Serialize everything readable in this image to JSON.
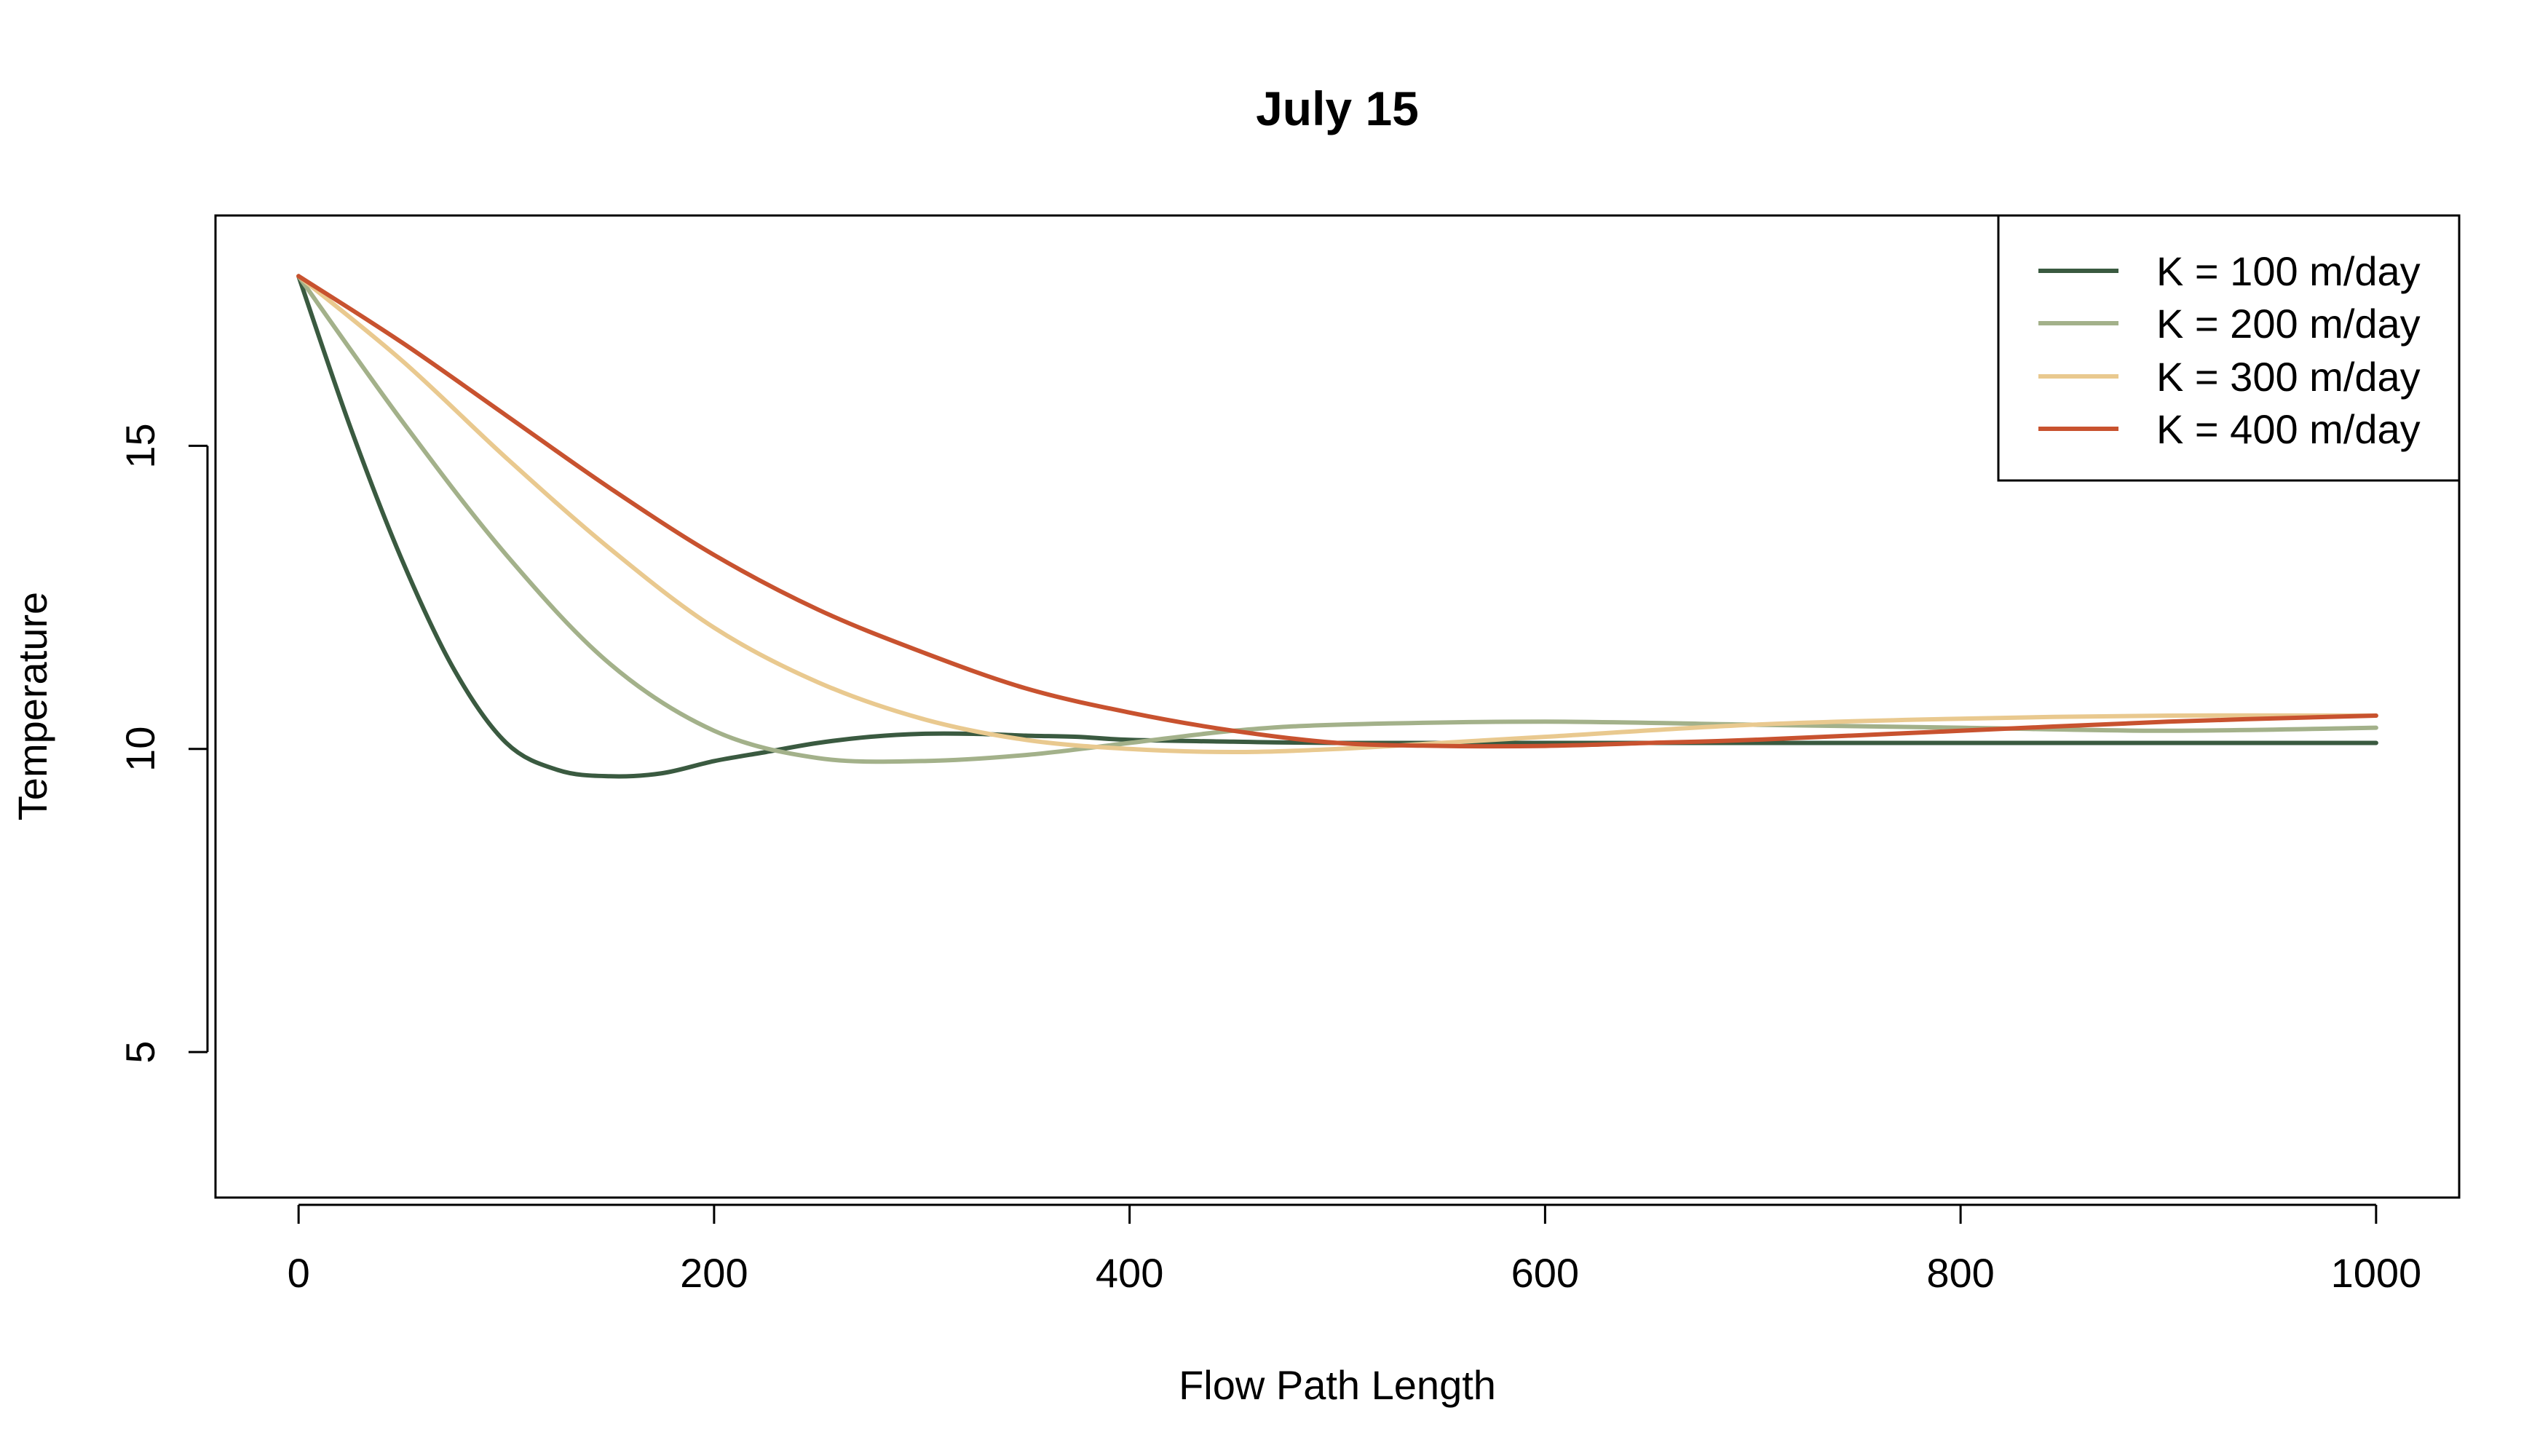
{
  "chart_data": {
    "type": "line",
    "title": "July 15",
    "xlabel": "Flow Path Length",
    "ylabel": "Temperature",
    "xlim": [
      -40,
      1040
    ],
    "ylim": [
      2.6,
      18.8
    ],
    "x_ticks": [
      0,
      200,
      400,
      600,
      800,
      1000
    ],
    "y_ticks": [
      5,
      10,
      15
    ],
    "legend_position": "top-right",
    "grid": false,
    "series": [
      {
        "name": "K = 100 m/day",
        "color": "#3a5a40",
        "x": [
          0,
          25,
          50,
          75,
          100,
          125,
          150,
          175,
          200,
          225,
          250,
          275,
          300,
          325,
          350,
          375,
          400,
          450,
          500,
          600,
          700,
          800,
          900,
          1000
        ],
        "y": [
          17.8,
          15.3,
          13.1,
          11.3,
          10.1,
          9.65,
          9.55,
          9.6,
          9.8,
          9.95,
          10.1,
          10.2,
          10.25,
          10.25,
          10.22,
          10.2,
          10.15,
          10.12,
          10.1,
          10.1,
          10.1,
          10.1,
          10.1,
          10.1
        ]
      },
      {
        "name": "K = 200 m/day",
        "color": "#a3b18a",
        "x": [
          0,
          50,
          100,
          150,
          200,
          250,
          300,
          350,
          400,
          450,
          500,
          600,
          700,
          800,
          900,
          1000
        ],
        "y": [
          17.8,
          15.4,
          13.2,
          11.4,
          10.3,
          9.85,
          9.8,
          9.9,
          10.1,
          10.3,
          10.4,
          10.45,
          10.4,
          10.35,
          10.3,
          10.35
        ]
      },
      {
        "name": "K = 300 m/day",
        "color": "#e9c98f",
        "x": [
          0,
          50,
          100,
          150,
          200,
          250,
          300,
          350,
          400,
          450,
          500,
          550,
          600,
          700,
          800,
          900,
          1000
        ],
        "y": [
          17.8,
          16.4,
          14.8,
          13.3,
          12.0,
          11.1,
          10.5,
          10.15,
          10.0,
          9.95,
          10.0,
          10.1,
          10.2,
          10.4,
          10.5,
          10.55,
          10.55
        ]
      },
      {
        "name": "K = 400 m/day",
        "color": "#c8522f",
        "x": [
          0,
          50,
          100,
          150,
          200,
          250,
          300,
          350,
          400,
          450,
          500,
          550,
          600,
          650,
          700,
          800,
          900,
          1000
        ],
        "y": [
          17.8,
          16.7,
          15.5,
          14.3,
          13.2,
          12.3,
          11.6,
          11.0,
          10.6,
          10.3,
          10.1,
          10.05,
          10.05,
          10.1,
          10.15,
          10.3,
          10.45,
          10.55
        ]
      }
    ]
  }
}
